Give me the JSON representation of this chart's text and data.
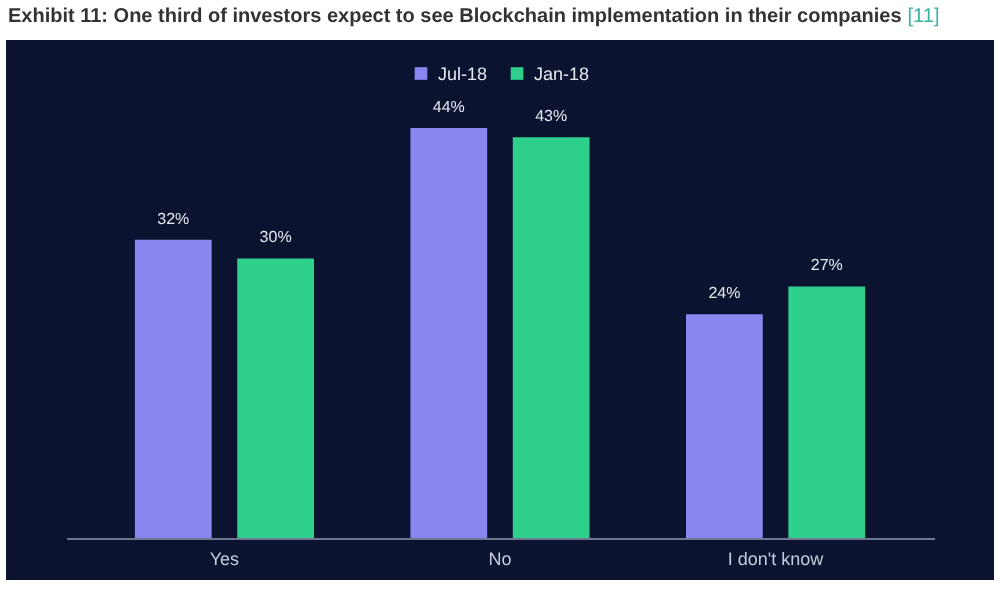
{
  "chart_data": {
    "type": "bar",
    "title": "Exhibit 11: One third of investors expect to see Blockchain implementation in their companies",
    "annotations": [
      "[11]"
    ],
    "categories": [
      "Yes",
      "No",
      "I don't know"
    ],
    "series": [
      {
        "name": "Jul-18",
        "color": "#8a86f0",
        "values": [
          32,
          44,
          24
        ],
        "value_labels": [
          "32%",
          "44%",
          "24%"
        ]
      },
      {
        "name": "Jan-18",
        "color": "#2fcf8c",
        "values": [
          30,
          43,
          27
        ],
        "value_labels": [
          "30%",
          "43%",
          "27%"
        ]
      }
    ],
    "legend": "top"
  }
}
